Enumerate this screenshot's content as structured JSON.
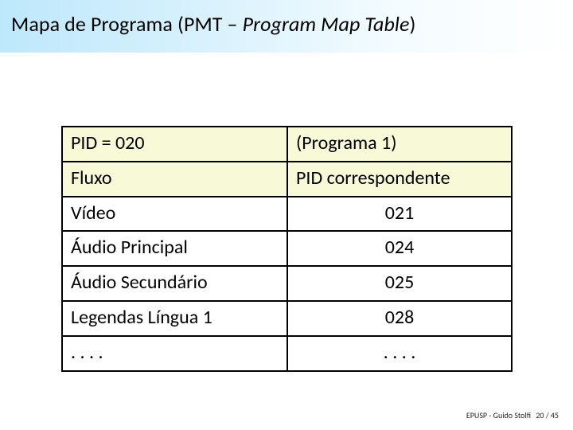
{
  "title": {
    "pre": "Mapa de Programa (PMT – ",
    "italic": "Program Map Table",
    "post": ")"
  },
  "table": {
    "header1": {
      "left": "PID = 020",
      "right": "(Programa 1)"
    },
    "header2": {
      "left": "Fluxo",
      "right": "PID correspondente"
    },
    "rows": [
      {
        "left": "Vídeo",
        "right": "021"
      },
      {
        "left": "Áudio Principal",
        "right": "024"
      },
      {
        "left": "Áudio Secundário",
        "right": "025"
      },
      {
        "left": "Legendas Língua 1",
        "right": "028"
      },
      {
        "left": ". . . .",
        "right": ". . . ."
      }
    ],
    "colors": {
      "header_bg": "#f8f9d6",
      "border": "#000000",
      "text": "#000000"
    }
  },
  "footer": {
    "credit": "EPUSP - Guido Stolfi",
    "page_current": "20",
    "page_sep": "/",
    "page_total": "45"
  },
  "style": {
    "title_gradient_from": "#bde8fb",
    "title_gradient_to": "#ffffff",
    "slide_bg": "#ffffff",
    "title_fontsize": 26,
    "cell_fontsize": 24,
    "footer_fontsize": 10
  }
}
